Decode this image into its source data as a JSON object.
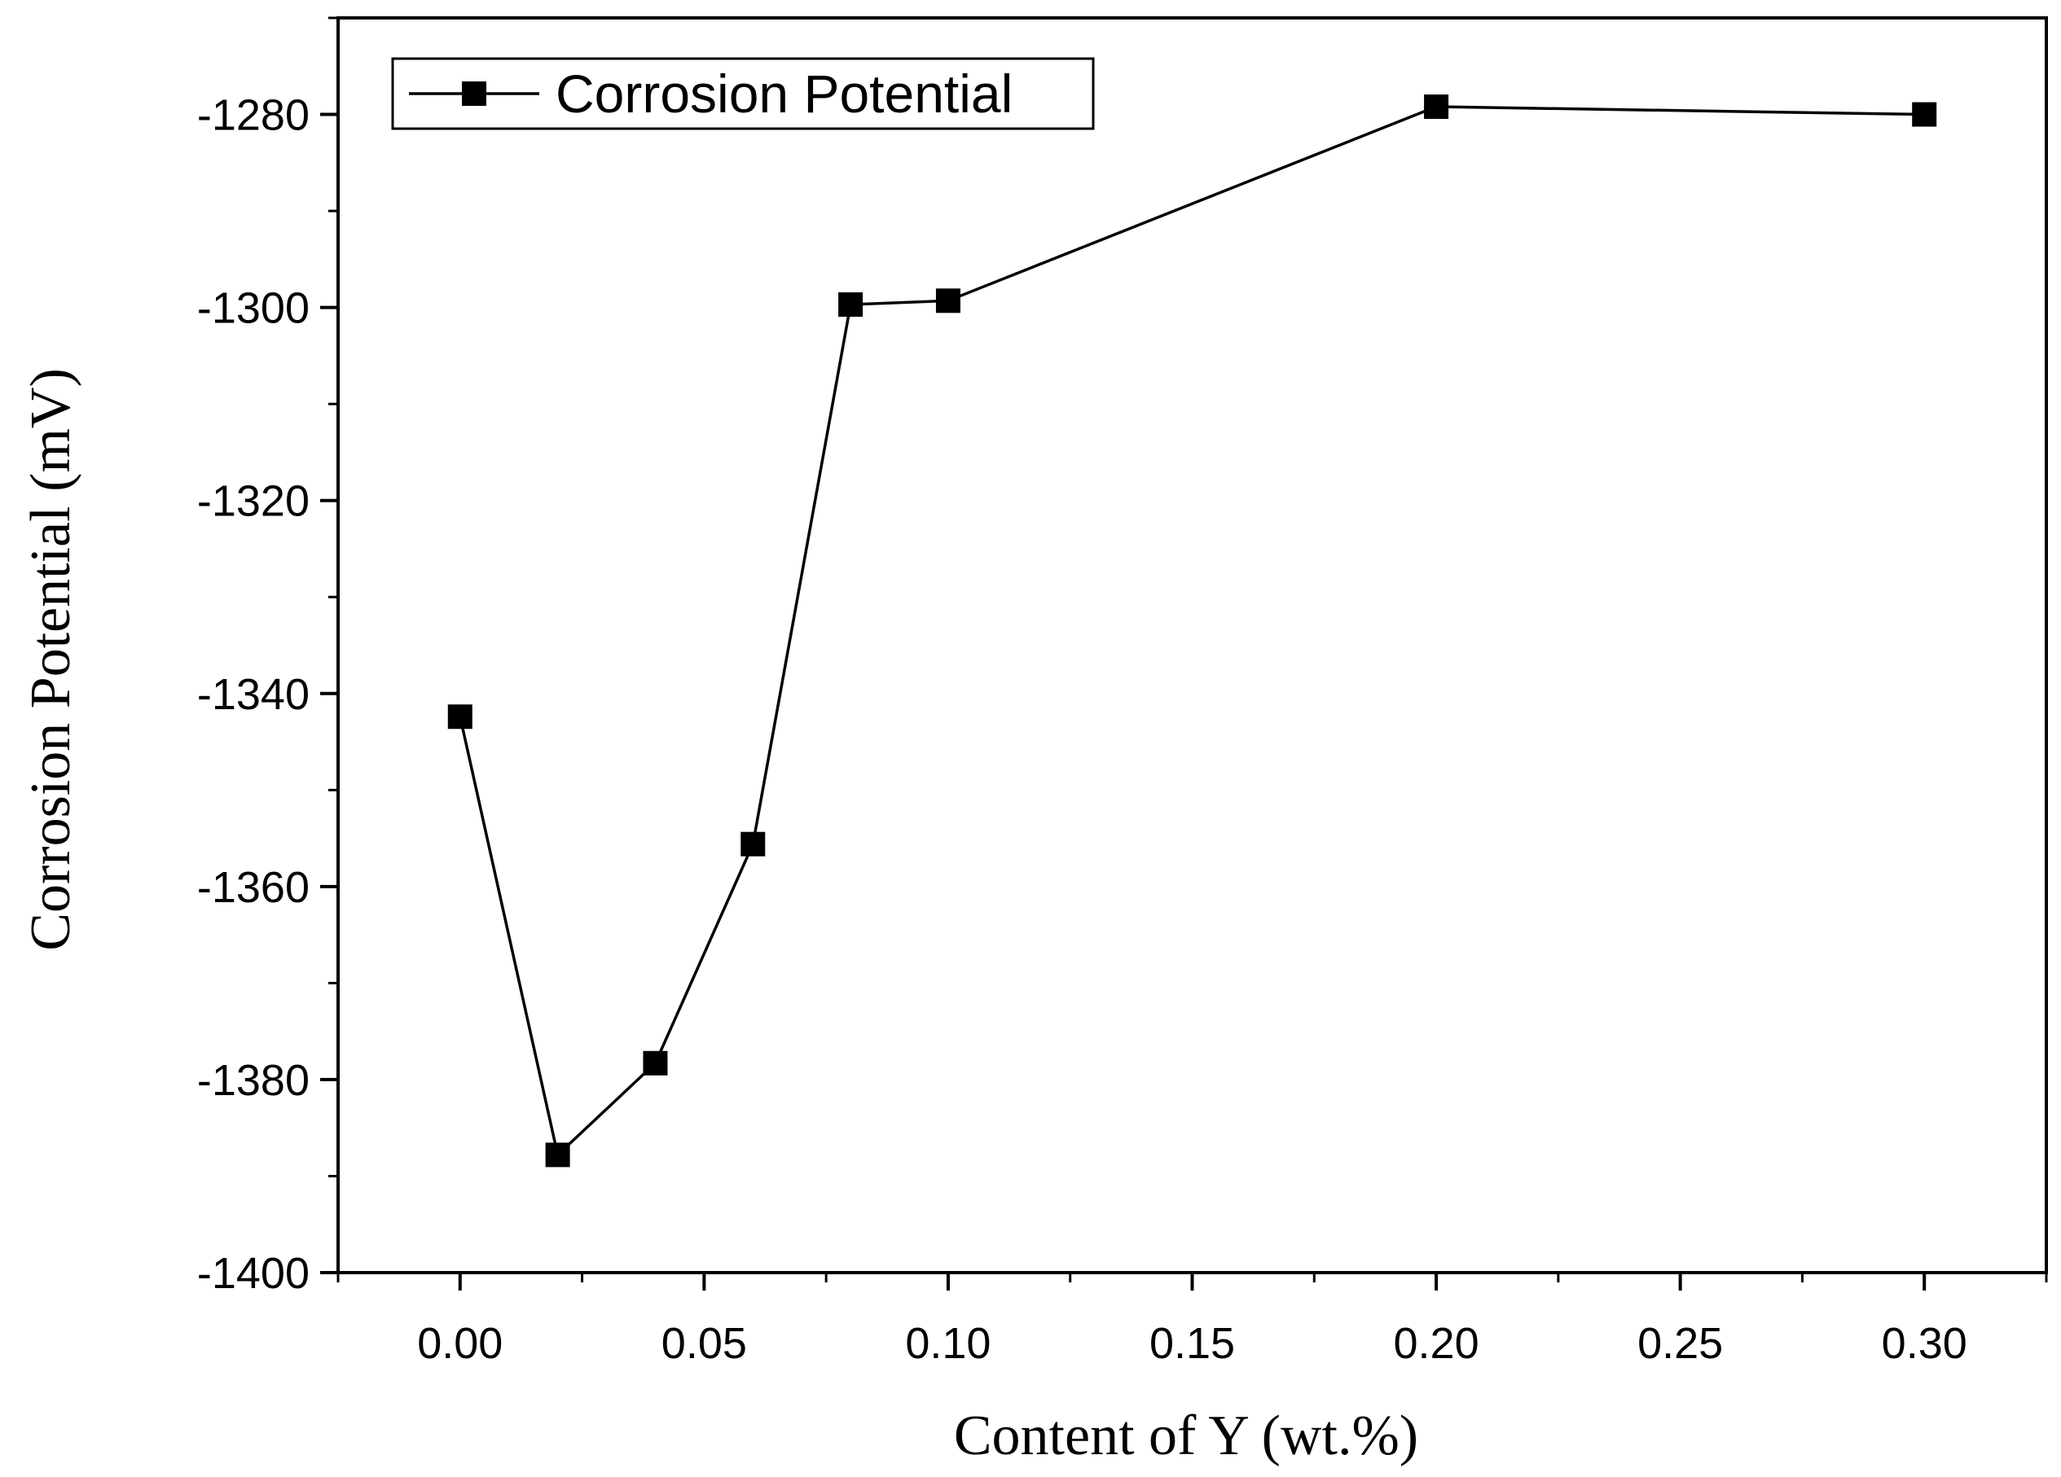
{
  "chart_data": {
    "type": "line",
    "title": "",
    "xlabel": "Content of Y (wt.%)",
    "ylabel": "Corrosion Potential (mV)",
    "xlim": [
      -0.025,
      0.325
    ],
    "ylim": [
      -1400,
      -1270
    ],
    "x_ticks": [
      0.0,
      0.05,
      0.1,
      0.15,
      0.2,
      0.25,
      0.3
    ],
    "x_tick_labels": [
      "0.00",
      "0.05",
      "0.10",
      "0.15",
      "0.20",
      "0.25",
      "0.30"
    ],
    "y_ticks": [
      -1400,
      -1380,
      -1360,
      -1340,
      -1320,
      -1300,
      -1280
    ],
    "y_tick_labels": [
      "-1400",
      "-1380",
      "-1360",
      "-1340",
      "-1320",
      "-1300",
      "-1280"
    ],
    "grid": false,
    "legend_position": "top-left",
    "series": [
      {
        "name": "Corrosion Potential",
        "marker": "square",
        "color": "#000000",
        "x": [
          0.0,
          0.02,
          0.04,
          0.06,
          0.08,
          0.1,
          0.2,
          0.3
        ],
        "y": [
          -1342.4,
          -1387.8,
          -1378.3,
          -1355.6,
          -1299.7,
          -1299.3,
          -1279.2,
          -1280.0
        ]
      }
    ]
  }
}
